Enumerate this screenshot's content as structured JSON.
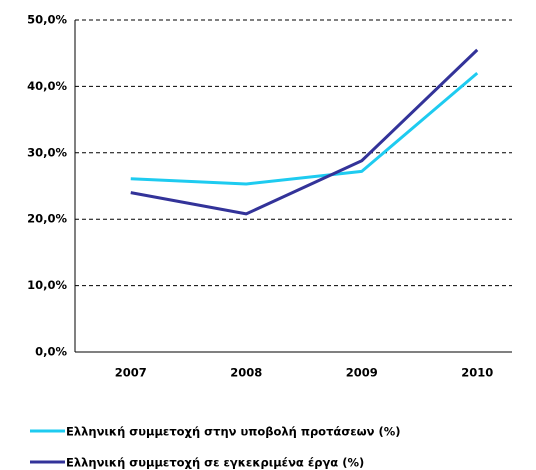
{
  "chart_data": {
    "type": "line",
    "categories": [
      "2007",
      "2008",
      "2009",
      "2010"
    ],
    "series": [
      {
        "name": "Ελληνική συμμετοχή στην υποβολή προτάσεων (%)",
        "color": "#1ecbf0",
        "values": [
          26.1,
          25.3,
          27.2,
          42.0
        ]
      },
      {
        "name": "Ελληνική συμμετοχή σε εγκεκριμένα έργα (%)",
        "color": "#333399",
        "values": [
          24.0,
          20.8,
          28.8,
          45.5
        ]
      }
    ],
    "ylim": [
      0,
      50
    ],
    "yticks": [
      {
        "value": 0,
        "label": "0,0%"
      },
      {
        "value": 10,
        "label": "10,0%"
      },
      {
        "value": 20,
        "label": "20,0%"
      },
      {
        "value": 30,
        "label": "30,0%"
      },
      {
        "value": 40,
        "label": "40,0%"
      },
      {
        "value": 50,
        "label": "50,0%"
      }
    ],
    "grid": true,
    "legend": "bottom"
  }
}
